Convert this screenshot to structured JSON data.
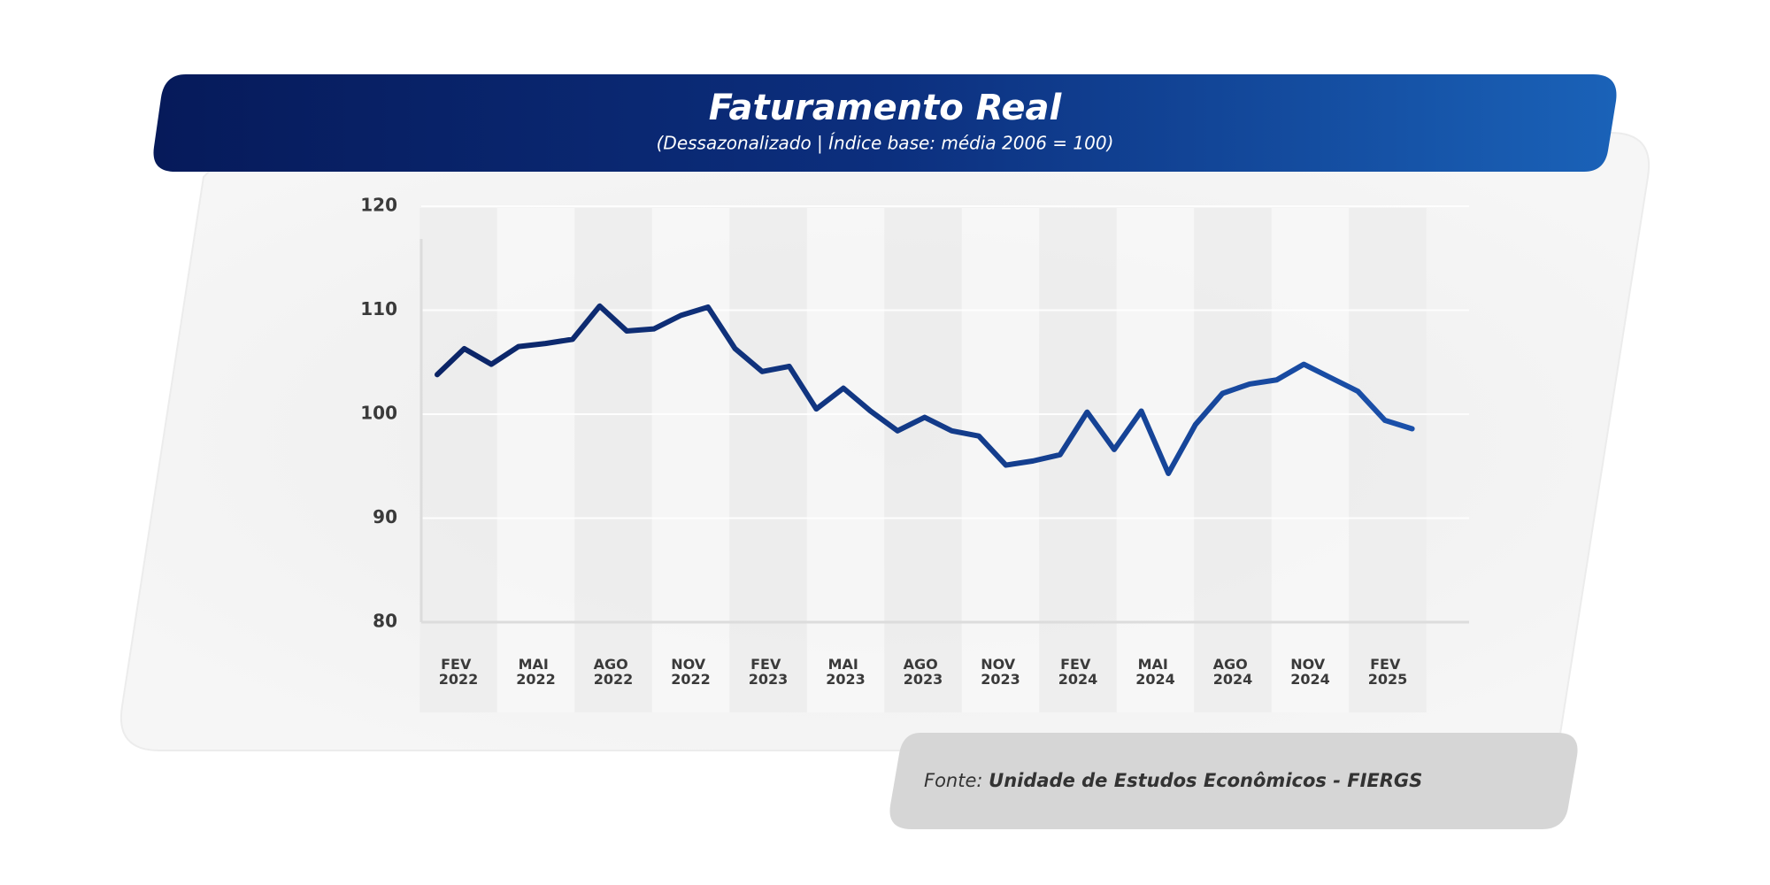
{
  "chart_data": {
    "type": "line",
    "title": "Faturamento Real",
    "subtitle": "(Dessazonalizado | Índice base: média 2006 = 100)",
    "source_label": "Fonte:",
    "source": "Unidade de Estudos Econômicos - FIERGS",
    "x_labels": [
      "FEV 2022",
      "MAI 2022",
      "AGO 2022",
      "NOV 2022",
      "FEV 2023",
      "MAI 2023",
      "AGO 2023",
      "NOV 2023",
      "FEV 2024",
      "MAI 2024",
      "AGO 2024",
      "NOV 2024",
      "FEV 2025"
    ],
    "values": [
      103.8,
      106.3,
      104.8,
      106.5,
      106.8,
      107.2,
      110.4,
      108.0,
      108.2,
      109.5,
      110.3,
      106.3,
      104.1,
      104.6,
      100.5,
      102.5,
      100.3,
      98.4,
      99.7,
      98.4,
      97.9,
      95.1,
      95.5,
      96.1,
      100.2,
      96.6,
      100.3,
      94.3,
      99.0,
      102.0,
      102.9,
      103.3,
      104.8,
      103.5,
      102.2,
      99.4,
      98.6
    ],
    "color_start": "#0b2466",
    "color_end": "#1a50aa",
    "ylim": [
      80,
      120
    ],
    "yticks": [
      80,
      90,
      100,
      110,
      120
    ],
    "grid": true
  }
}
